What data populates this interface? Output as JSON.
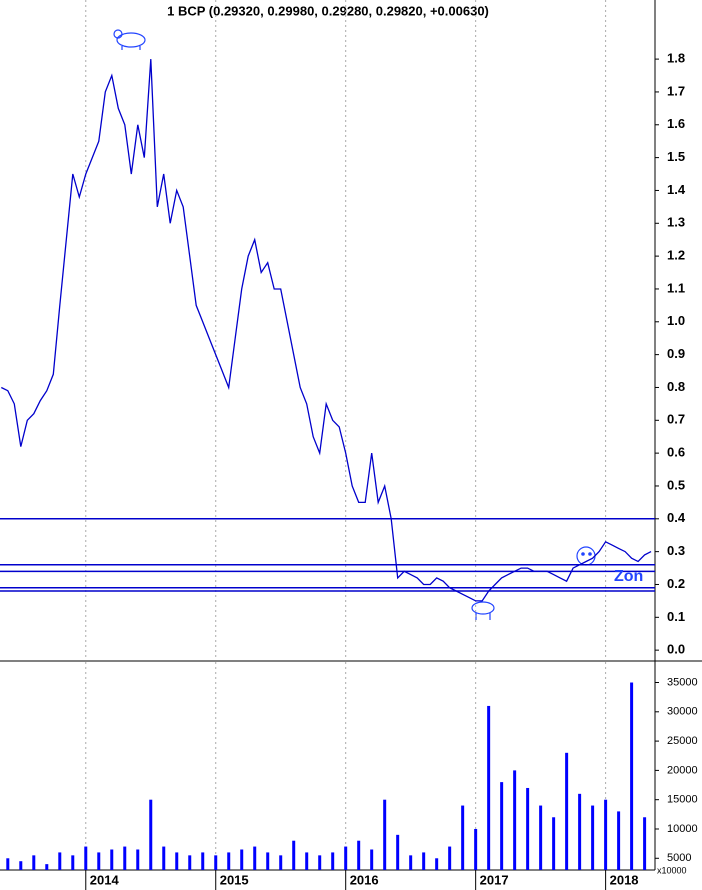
{
  "chart_data": [
    {
      "type": "line",
      "title": "1 BCP (0.29320, 0.29980, 0.29280, 0.29820, +0.00630)",
      "xlim": [
        2013.34,
        2018.38
      ],
      "ylim": [
        -0.03,
        1.98
      ],
      "yticks": [
        {
          "value": 0,
          "label": "0.0"
        },
        0.1,
        0.2,
        0.3,
        0.4,
        0.5,
        0.6,
        0.7,
        0.8,
        0.9,
        {
          "value": 1,
          "label": "1.0"
        },
        1.1,
        1.2,
        1.3,
        1.4,
        1.5,
        1.6,
        1.7,
        1.8
      ],
      "levels": [
        0.4,
        0.26,
        0.24,
        0.19,
        0.18
      ],
      "level_color": "#0000cc",
      "annotation": "Zon",
      "series": [
        {
          "color": "#0000cc",
          "x": [
            2013.35,
            2013.4,
            2013.45,
            2013.5,
            2013.55,
            2013.6,
            2013.65,
            2013.7,
            2013.75,
            2013.8,
            2013.85,
            2013.9,
            2013.95,
            2014.0,
            2014.05,
            2014.1,
            2014.15,
            2014.2,
            2014.25,
            2014.3,
            2014.35,
            2014.4,
            2014.45,
            2014.5,
            2014.55,
            2014.6,
            2014.65,
            2014.7,
            2014.75,
            2014.8,
            2014.85,
            2014.9,
            2014.95,
            2015.0,
            2015.05,
            2015.1,
            2015.15,
            2015.2,
            2015.25,
            2015.3,
            2015.35,
            2015.4,
            2015.45,
            2015.5,
            2015.55,
            2015.6,
            2015.65,
            2015.7,
            2015.75,
            2015.8,
            2015.85,
            2015.9,
            2015.95,
            2016.0,
            2016.05,
            2016.1,
            2016.15,
            2016.2,
            2016.25,
            2016.3,
            2016.35,
            2016.4,
            2016.45,
            2016.5,
            2016.55,
            2016.6,
            2016.65,
            2016.7,
            2016.75,
            2016.8,
            2016.85,
            2016.9,
            2016.95,
            2017.0,
            2017.05,
            2017.1,
            2017.15,
            2017.2,
            2017.25,
            2017.3,
            2017.35,
            2017.4,
            2017.45,
            2017.5,
            2017.55,
            2017.6,
            2017.65,
            2017.7,
            2017.75,
            2017.8,
            2017.85,
            2017.9,
            2017.95,
            2018.0,
            2018.05,
            2018.1,
            2018.15,
            2018.2,
            2018.25,
            2018.3,
            2018.35
          ],
          "values": [
            0.8,
            0.79,
            0.75,
            0.62,
            0.7,
            0.72,
            0.76,
            0.79,
            0.84,
            1.05,
            1.25,
            1.45,
            1.38,
            1.45,
            1.5,
            1.55,
            1.7,
            1.75,
            1.65,
            1.6,
            1.45,
            1.6,
            1.5,
            1.8,
            1.35,
            1.45,
            1.3,
            1.4,
            1.35,
            1.2,
            1.05,
            1.0,
            0.95,
            0.9,
            0.85,
            0.8,
            0.95,
            1.1,
            1.2,
            1.25,
            1.15,
            1.18,
            1.1,
            1.1,
            1.0,
            0.9,
            0.8,
            0.75,
            0.65,
            0.6,
            0.75,
            0.7,
            0.68,
            0.6,
            0.5,
            0.45,
            0.45,
            0.6,
            0.45,
            0.5,
            0.4,
            0.22,
            0.24,
            0.23,
            0.22,
            0.2,
            0.2,
            0.22,
            0.21,
            0.19,
            0.18,
            0.17,
            0.16,
            0.15,
            0.15,
            0.18,
            0.2,
            0.22,
            0.23,
            0.24,
            0.25,
            0.25,
            0.24,
            0.24,
            0.24,
            0.23,
            0.22,
            0.21,
            0.25,
            0.26,
            0.27,
            0.28,
            0.3,
            0.33,
            0.32,
            0.31,
            0.3,
            0.28,
            0.27,
            0.29,
            0.3
          ]
        }
      ]
    },
    {
      "type": "bar",
      "annotation": "x10000",
      "xlim": [
        2013.34,
        2018.38
      ],
      "xticks": [
        2014,
        2015,
        2016,
        2017,
        2018
      ],
      "ylim": [
        3000,
        38500
      ],
      "yticks": [
        5000,
        10000,
        15000,
        20000,
        25000,
        30000,
        35000
      ],
      "color": "#0000ff",
      "x": [
        2013.4,
        2013.5,
        2013.6,
        2013.7,
        2013.8,
        2013.9,
        2014.0,
        2014.1,
        2014.2,
        2014.3,
        2014.4,
        2014.5,
        2014.6,
        2014.7,
        2014.8,
        2014.9,
        2015.0,
        2015.1,
        2015.2,
        2015.3,
        2015.4,
        2015.5,
        2015.6,
        2015.7,
        2015.8,
        2015.9,
        2016.0,
        2016.1,
        2016.2,
        2016.3,
        2016.4,
        2016.5,
        2016.6,
        2016.7,
        2016.8,
        2016.9,
        2017.0,
        2017.1,
        2017.2,
        2017.3,
        2017.4,
        2017.5,
        2017.6,
        2017.7,
        2017.8,
        2017.9,
        2018.0,
        2018.1,
        2018.2,
        2018.3
      ],
      "values": [
        5000,
        4500,
        5500,
        4000,
        6000,
        5500,
        7000,
        6000,
        6500,
        7000,
        6500,
        15000,
        7000,
        6000,
        5500,
        6000,
        5500,
        6000,
        6500,
        7000,
        6000,
        5500,
        8000,
        6000,
        5500,
        6000,
        7000,
        8000,
        6500,
        15000,
        9000,
        5500,
        6000,
        5000,
        7000,
        14000,
        10000,
        31000,
        18000,
        20000,
        17000,
        14000,
        12000,
        23000,
        16000,
        14000,
        15000,
        13000,
        35000,
        12000
      ]
    }
  ]
}
